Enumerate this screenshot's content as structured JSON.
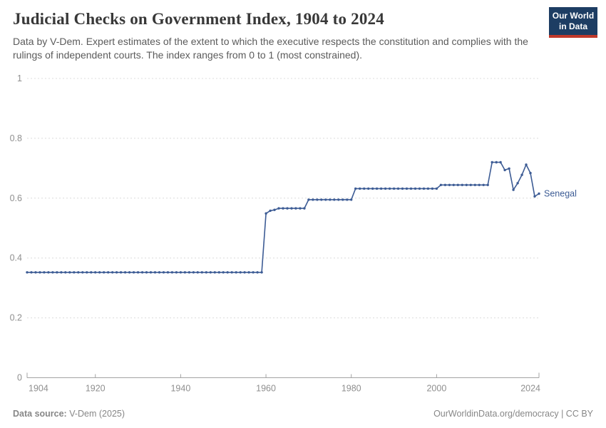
{
  "header": {
    "title": "Judicial Checks on Government Index, 1904 to 2024",
    "subtitle": "Data by V-Dem. Expert estimates of the extent to which the executive respects the constitution and complies with the rulings of independent courts. The index ranges from 0 to 1 (most constrained).",
    "logo": {
      "line1": "Our World",
      "line2": "in Data",
      "bg_color": "#1d3d63",
      "accent_color": "#c0392b"
    }
  },
  "footer": {
    "source_label": "Data source:",
    "source_value": " V-Dem (2025)",
    "right_text": "OurWorldinData.org/democracy | CC BY"
  },
  "chart_data": {
    "type": "line",
    "title": "Judicial Checks on Government Index, 1904 to 2024",
    "xlabel": "",
    "ylabel": "",
    "xlim": [
      1904,
      2024
    ],
    "ylim": [
      0,
      1
    ],
    "xticks": [
      1904,
      1920,
      1940,
      1960,
      1980,
      2000,
      2024
    ],
    "yticks": [
      0,
      0.2,
      0.4,
      0.6,
      0.8,
      1
    ],
    "ytick_labels": [
      "0",
      "0.2",
      "0.4",
      "0.6",
      "0.8",
      "1"
    ],
    "grid": "horizontal-dashed",
    "legend": "line-end-label",
    "colors": {
      "line": "#3d5c95",
      "grid": "#dcdcdc",
      "axis": "#a3a3a3",
      "tick_text": "#8f8f8f"
    },
    "series": [
      {
        "name": "Senegal",
        "color": "#3d5c95",
        "x_start": 1904,
        "x_end": 2024,
        "values": [
          0.352,
          0.352,
          0.352,
          0.352,
          0.352,
          0.352,
          0.352,
          0.352,
          0.352,
          0.352,
          0.352,
          0.352,
          0.352,
          0.352,
          0.352,
          0.352,
          0.352,
          0.352,
          0.352,
          0.352,
          0.352,
          0.352,
          0.352,
          0.352,
          0.352,
          0.352,
          0.352,
          0.352,
          0.352,
          0.352,
          0.352,
          0.352,
          0.352,
          0.352,
          0.352,
          0.352,
          0.352,
          0.352,
          0.352,
          0.352,
          0.352,
          0.352,
          0.352,
          0.352,
          0.352,
          0.352,
          0.352,
          0.352,
          0.352,
          0.352,
          0.352,
          0.352,
          0.352,
          0.352,
          0.352,
          0.352,
          0.549,
          0.558,
          0.561,
          0.566,
          0.566,
          0.566,
          0.566,
          0.566,
          0.566,
          0.566,
          0.595,
          0.595,
          0.595,
          0.595,
          0.595,
          0.595,
          0.595,
          0.595,
          0.595,
          0.595,
          0.595,
          0.632,
          0.632,
          0.632,
          0.632,
          0.632,
          0.632,
          0.632,
          0.632,
          0.632,
          0.632,
          0.632,
          0.632,
          0.632,
          0.632,
          0.632,
          0.632,
          0.632,
          0.632,
          0.632,
          0.632,
          0.644,
          0.644,
          0.644,
          0.644,
          0.644,
          0.644,
          0.644,
          0.644,
          0.644,
          0.644,
          0.644,
          0.644,
          0.72,
          0.72,
          0.72,
          0.694,
          0.699,
          0.628,
          0.65,
          0.678,
          0.712,
          0.684,
          0.606,
          0.615
        ]
      }
    ]
  }
}
